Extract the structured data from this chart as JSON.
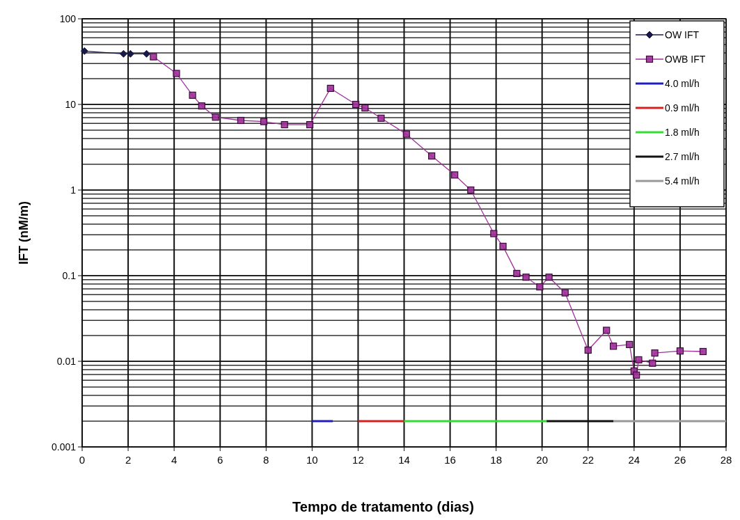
{
  "chart_data": {
    "type": "line",
    "xlabel": "Tempo de tratamento (dias)",
    "ylabel": "IFT (nM/m)",
    "log": "y",
    "grid": true,
    "legend": "top right",
    "xlim": [
      0,
      28
    ],
    "xticks": [
      0,
      2,
      4,
      6,
      8,
      10,
      12,
      14,
      16,
      18,
      20,
      22,
      24,
      26,
      28
    ],
    "ylim": [
      0.001,
      100
    ],
    "yticks": [
      0.001,
      0.01,
      0.1,
      1,
      10,
      100
    ],
    "series": [
      {
        "name": "OW IFT",
        "color": "#1a1a4a",
        "marker": "diamond",
        "x": [
          0.1,
          1.8,
          2.1,
          2.8
        ],
        "values": [
          42,
          39,
          39,
          39
        ]
      },
      {
        "name": "OWB IFT",
        "color": "#a0309a",
        "marker": "square",
        "x": [
          3.1,
          4.1,
          4.8,
          5.2,
          5.8,
          6.9,
          7.9,
          8.8,
          9.9,
          10.8,
          11.9,
          12.3,
          13.0,
          14.1,
          15.2,
          16.2,
          16.9,
          17.9,
          18.3,
          18.9,
          19.3,
          19.9,
          20.3,
          21.0,
          22.0,
          22.8,
          23.1,
          23.8,
          24.0,
          24.1,
          24.2,
          24.8,
          24.9,
          26.0,
          27.0
        ],
        "values": [
          36,
          23,
          12.8,
          9.6,
          7.1,
          6.5,
          6.3,
          5.8,
          5.8,
          15.4,
          10,
          9.1,
          6.9,
          4.5,
          2.5,
          1.5,
          1.0,
          0.31,
          0.22,
          0.106,
          0.096,
          0.074,
          0.096,
          0.063,
          0.0135,
          0.023,
          0.015,
          0.0157,
          0.0077,
          0.0069,
          0.0104,
          0.0095,
          0.0125,
          0.0132,
          0.013
        ]
      },
      {
        "name": "4.0 ml/h",
        "color": "#1f1fc0",
        "marker": "none",
        "x": [
          10,
          10.9
        ],
        "values": [
          0.002,
          0.002
        ]
      },
      {
        "name": "0.9 ml/h",
        "color": "#d62020",
        "marker": "none",
        "x": [
          12,
          14
        ],
        "values": [
          0.002,
          0.002
        ]
      },
      {
        "name": "1.8 ml/h",
        "color": "#33dd33",
        "marker": "none",
        "x": [
          14,
          20.2
        ],
        "values": [
          0.002,
          0.002
        ]
      },
      {
        "name": "2.7 ml/h",
        "color": "#111111",
        "marker": "none",
        "x": [
          20.2,
          23.1
        ],
        "values": [
          0.002,
          0.002
        ]
      },
      {
        "name": "5.4 ml/h",
        "color": "#999999",
        "marker": "none",
        "x": [
          23.1,
          28
        ],
        "values": [
          0.002,
          0.002
        ]
      }
    ]
  }
}
